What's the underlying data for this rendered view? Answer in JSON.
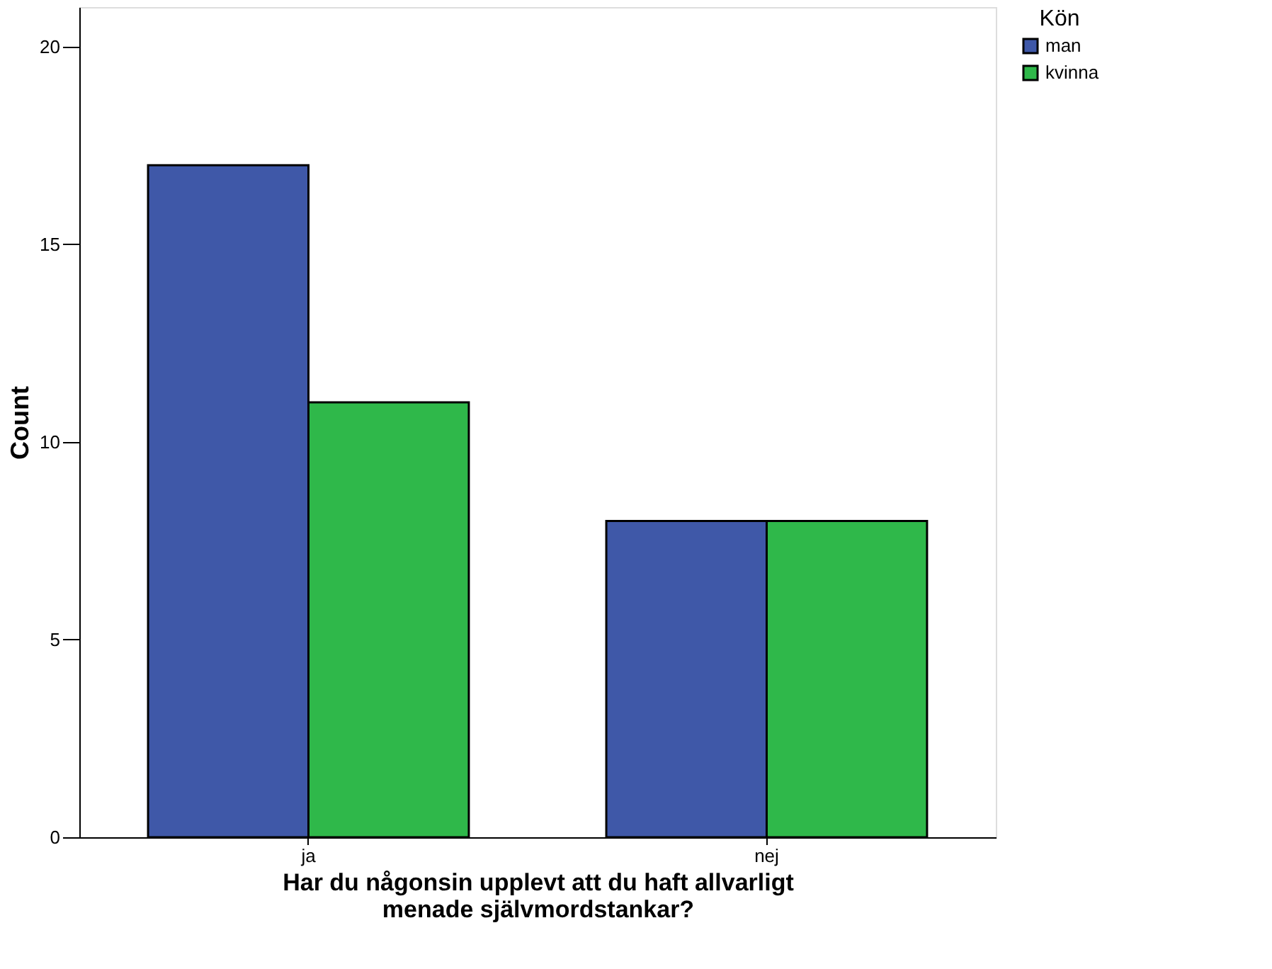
{
  "chart_data": {
    "type": "bar",
    "xlabel": "Har du någonsin upplevt att du haft allvarligt menade självmordstankar?",
    "ylabel": "Count",
    "legend_title": "Kön",
    "categories": [
      "ja",
      "nej"
    ],
    "series": [
      {
        "name": "man",
        "color": "#3f58a8",
        "values": [
          17,
          8
        ]
      },
      {
        "name": "kvinna",
        "color": "#2fb84a",
        "values": [
          11,
          8
        ]
      }
    ],
    "ylim": [
      0,
      21
    ],
    "yticks": [
      0,
      5,
      10,
      15,
      20
    ],
    "grid": false,
    "legend": "top right"
  }
}
